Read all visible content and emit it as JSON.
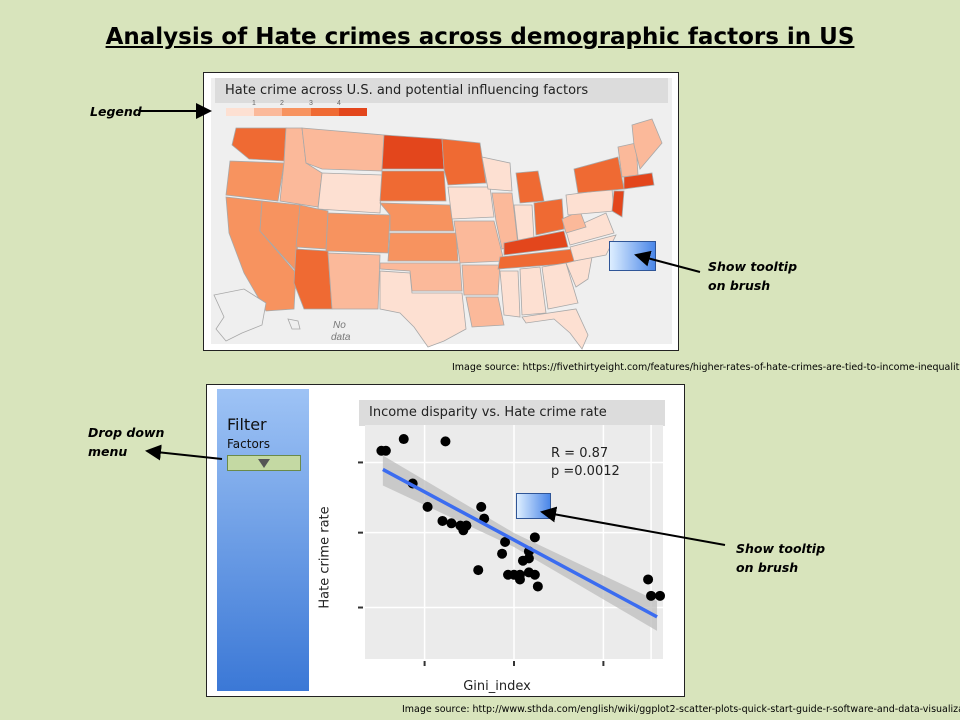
{
  "page": {
    "title": "Analysis of Hate crimes across demographic factors in US"
  },
  "map_panel": {
    "title": "Hate crime across U.S. and potential influencing factors",
    "legend_ticks": [
      "1",
      "2",
      "3",
      "4"
    ],
    "no_data_label_1": "No",
    "no_data_label_2": "data",
    "source": "Image source:  https://fivethirtyeight.com/features/higher-rates-of-hate-crimes-are-tied-to-income-inequality/"
  },
  "annotations": {
    "legend": "Legend",
    "map_tooltip_line1": "Show tooltip",
    "map_tooltip_line2": "on brush",
    "dropdown_line1": "Drop down",
    "dropdown_line2": "menu",
    "scatter_tooltip_line1": "Show tooltip",
    "scatter_tooltip_line2": "on brush"
  },
  "filter_panel": {
    "title": "Filter",
    "subtitle": "Factors"
  },
  "scatter_panel": {
    "title": "Income disparity vs. Hate crime rate",
    "xlabel": "Gini_index",
    "ylabel": "Hate crime rate",
    "stat_r": "R = 0.87",
    "stat_p": "p =0.0012",
    "source": "Image source: http://www.sthda.com/english/wiki/ggplot2-scatter-plots-quick-start-guide-r-software-and-data-visualization"
  },
  "colors": {
    "background": "#d8e4bc",
    "choropleth_scale": [
      "#fde0d2",
      "#fbb99a",
      "#f7935f",
      "#ef6a33",
      "#e3461c"
    ],
    "fit_line": "#3b6cf0",
    "filter_panel": "#4f86d9"
  },
  "chart_data": {
    "type": "scatter",
    "title": "Income disparity vs. Hate crime rate",
    "xlabel": "Gini_index",
    "ylabel": "Hate crime rate",
    "xlim": [
      0,
      100
    ],
    "ylim": [
      0,
      100
    ],
    "points": [
      [
        5.5,
        89
      ],
      [
        7,
        89
      ],
      [
        13,
        94
      ],
      [
        27,
        93
      ],
      [
        16,
        75
      ],
      [
        21,
        65
      ],
      [
        26,
        59
      ],
      [
        29,
        58
      ],
      [
        32,
        57
      ],
      [
        33,
        55
      ],
      [
        34,
        57
      ],
      [
        34,
        57
      ],
      [
        39,
        65
      ],
      [
        40,
        60
      ],
      [
        47,
        50
      ],
      [
        46,
        45
      ],
      [
        55,
        46
      ],
      [
        57,
        52
      ],
      [
        53,
        42
      ],
      [
        55,
        43
      ],
      [
        38,
        38
      ],
      [
        48,
        36
      ],
      [
        50,
        36
      ],
      [
        52,
        34
      ],
      [
        52,
        36
      ],
      [
        55,
        37
      ],
      [
        57,
        36
      ],
      [
        58,
        31
      ],
      [
        95,
        34
      ],
      [
        96,
        27
      ],
      [
        99,
        27
      ]
    ],
    "fit": {
      "x": [
        6,
        98
      ],
      "y": [
        81,
        18
      ]
    },
    "annotations": [
      "R = 0.87",
      "p =0.0012"
    ]
  }
}
